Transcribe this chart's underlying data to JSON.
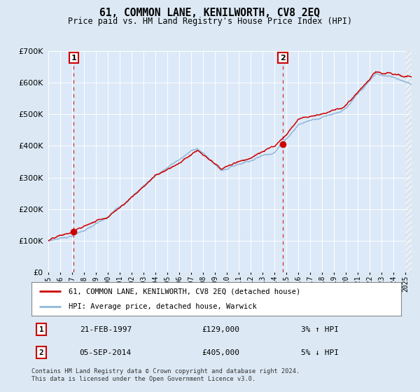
{
  "title": "61, COMMON LANE, KENILWORTH, CV8 2EQ",
  "subtitle": "Price paid vs. HM Land Registry's House Price Index (HPI)",
  "legend_line1": "61, COMMON LANE, KENILWORTH, CV8 2EQ (detached house)",
  "legend_line2": "HPI: Average price, detached house, Warwick",
  "footnote": "Contains HM Land Registry data © Crown copyright and database right 2024.\nThis data is licensed under the Open Government Licence v3.0.",
  "annotation1_date": "21-FEB-1997",
  "annotation1_price": "£129,000",
  "annotation1_hpi": "3% ↑ HPI",
  "annotation2_date": "05-SEP-2014",
  "annotation2_price": "£405,000",
  "annotation2_hpi": "5% ↓ HPI",
  "marker1_x": 1997.13,
  "marker1_y": 129000,
  "marker2_x": 2014.68,
  "marker2_y": 405000,
  "bg_color": "#dce9f5",
  "plot_bg": "#dce9f8",
  "red_color": "#cc0000",
  "blue_color": "#90b8d8",
  "ylim": [
    0,
    700000
  ],
  "xlim_start": 1995.0,
  "xlim_end": 2025.5,
  "hatch_start": 2025.0
}
